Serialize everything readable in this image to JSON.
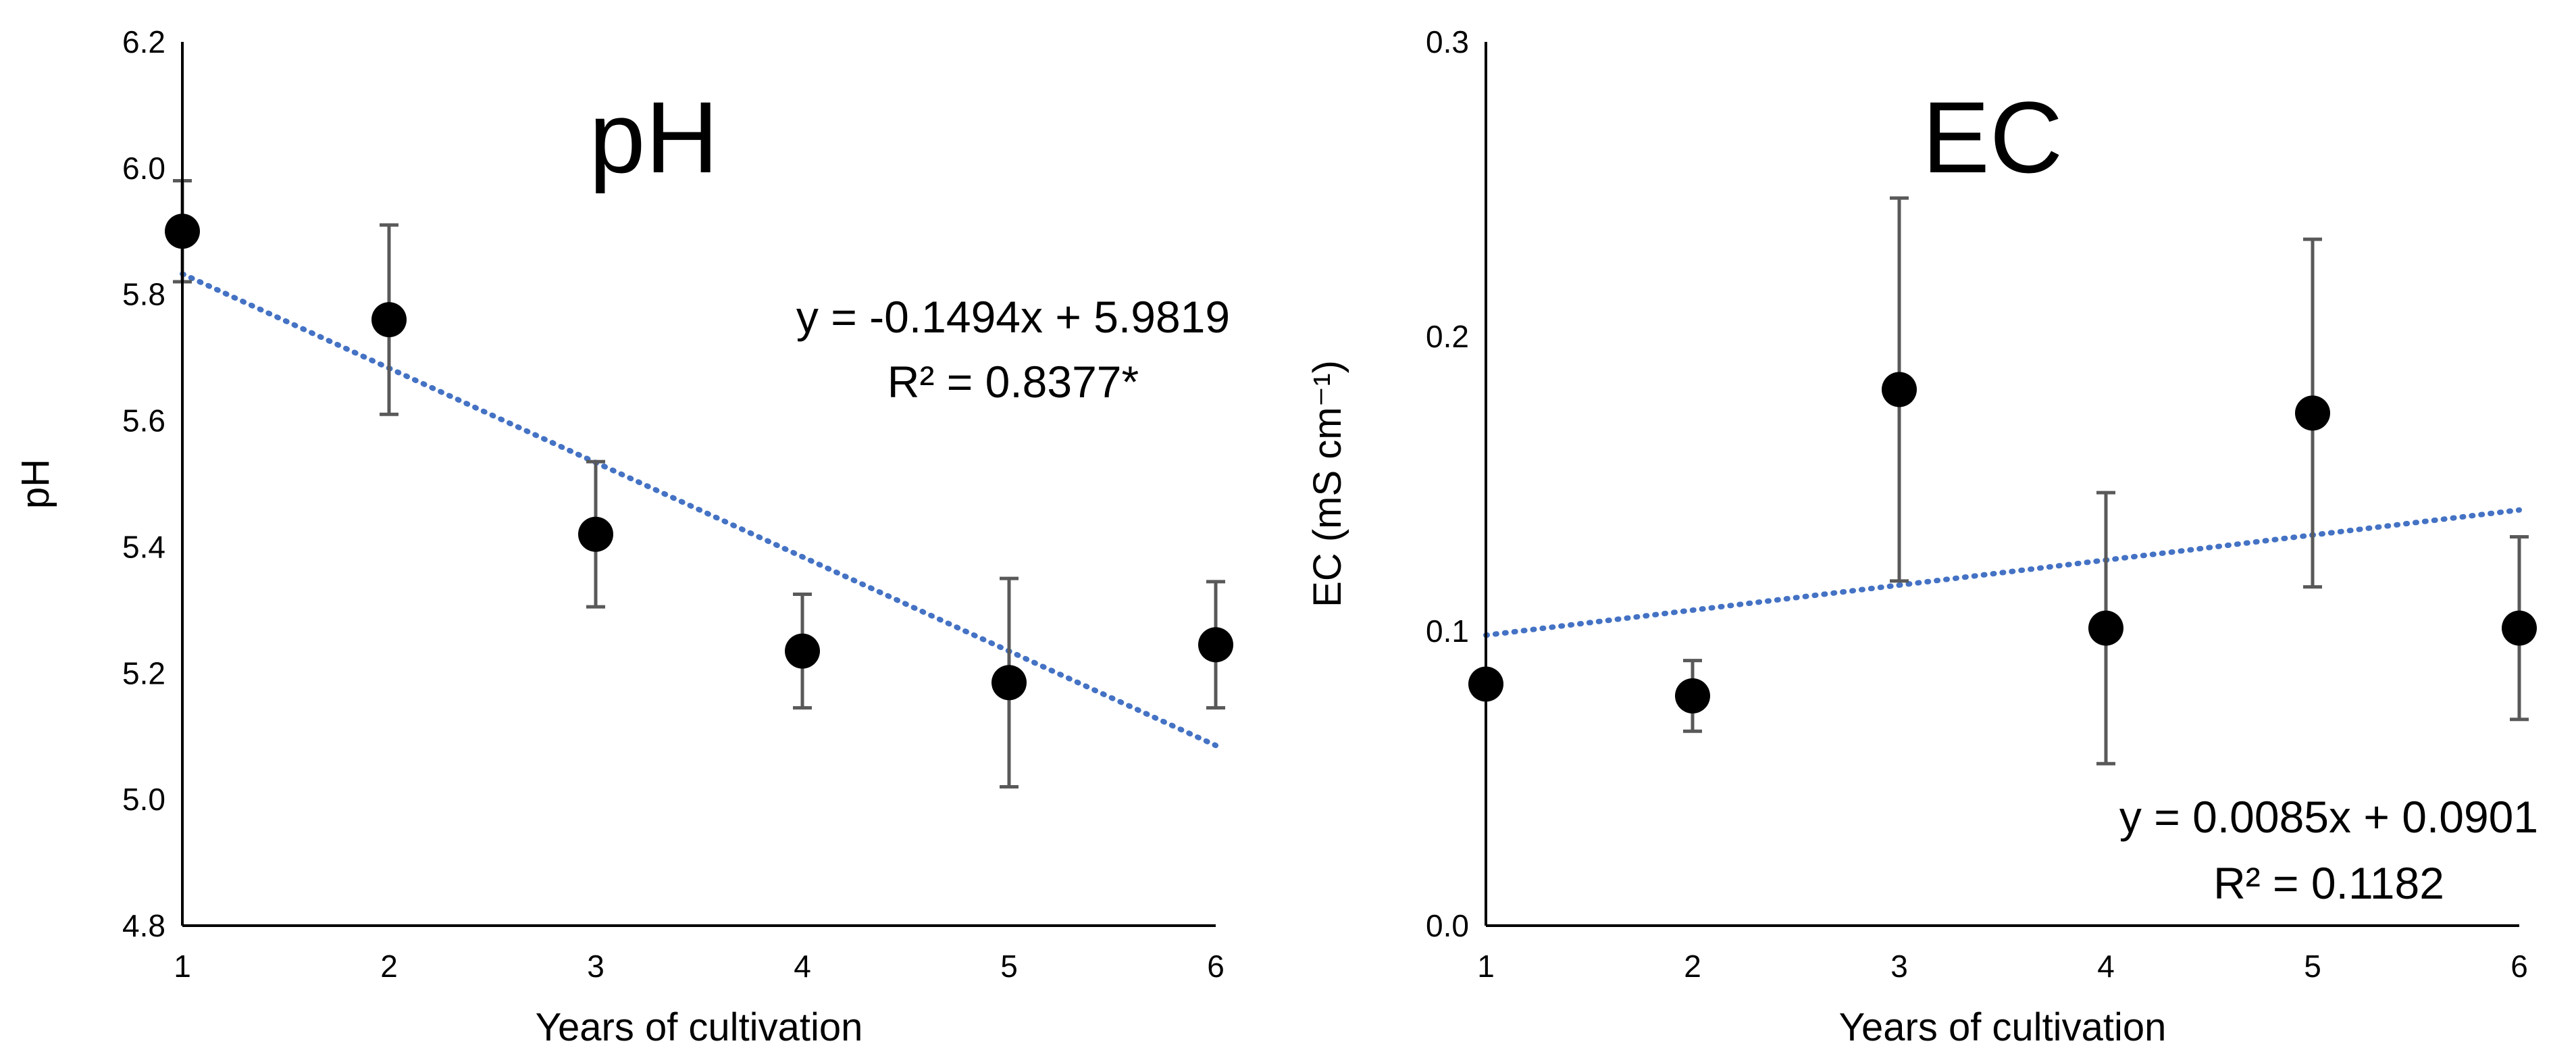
{
  "chart_data": [
    {
      "type": "scatter",
      "title": "pH",
      "xlabel": "Years of cultivation",
      "ylabel": "pH",
      "x": [
        1,
        2,
        3,
        4,
        5,
        6
      ],
      "y": [
        5.9,
        5.76,
        5.42,
        5.235,
        5.185,
        5.245
      ],
      "error": [
        0.08,
        0.15,
        0.115,
        0.09,
        0.165,
        0.1
      ],
      "xticks": [
        "1",
        "2",
        "3",
        "4",
        "5",
        "6"
      ],
      "yticks": [
        "4.8",
        "5.0",
        "5.2",
        "5.4",
        "5.6",
        "5.8",
        "6.0",
        "6.2"
      ],
      "xlim": [
        1,
        6
      ],
      "ylim": [
        4.8,
        6.2
      ],
      "trendline": {
        "slope": -0.1494,
        "intercept": 5.9819
      },
      "equation": "y = -0.1494x + 5.9819",
      "r2": "R² = 0.8377*",
      "colors": {
        "marker": "#000000",
        "errorbar": "#595959",
        "trend": "#4472C4"
      }
    },
    {
      "type": "scatter",
      "title": "EC",
      "xlabel": "Years of cultivation",
      "ylabel": "EC (mS cm⁻¹)",
      "x": [
        1,
        2,
        3,
        4,
        5,
        6
      ],
      "y": [
        0.082,
        0.078,
        0.182,
        0.101,
        0.174,
        0.101
      ],
      "error": [
        0,
        0.012,
        0.065,
        0.046,
        0.059,
        0.031
      ],
      "xticks": [
        "1",
        "2",
        "3",
        "4",
        "5",
        "6"
      ],
      "yticks": [
        "0.0",
        "0.1",
        "0.2",
        "0.3"
      ],
      "xlim": [
        1,
        6
      ],
      "ylim": [
        0,
        0.3
      ],
      "trendline": {
        "slope": 0.0085,
        "intercept": 0.0901
      },
      "equation": "y = 0.0085x + 0.0901",
      "r2": "R² = 0.1182",
      "colors": {
        "marker": "#000000",
        "errorbar": "#595959",
        "trend": "#4472C4"
      }
    }
  ]
}
